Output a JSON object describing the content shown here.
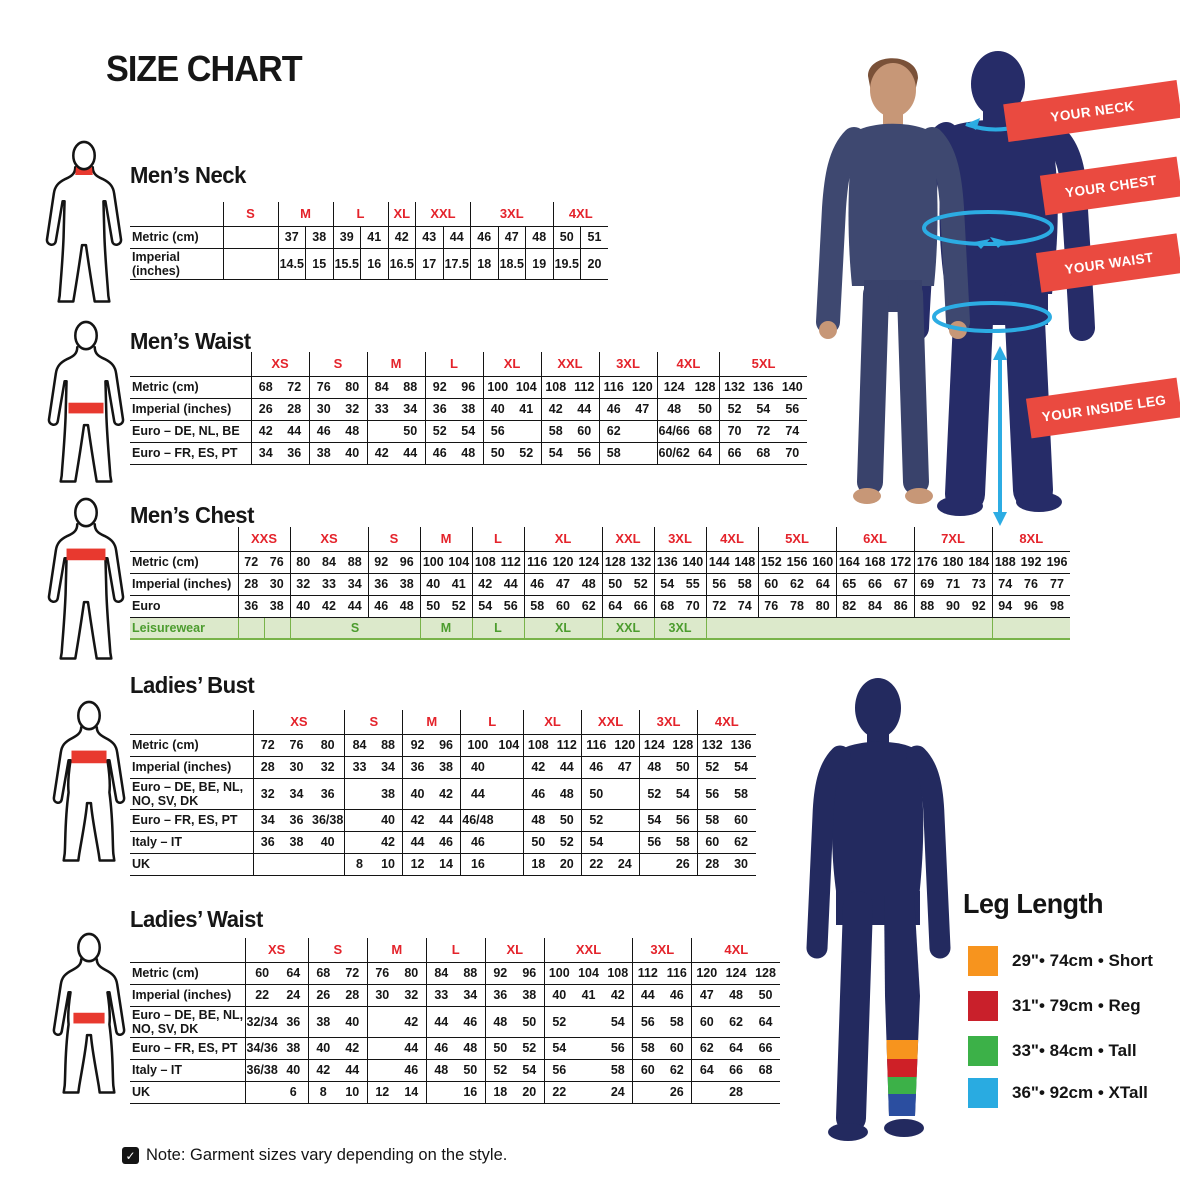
{
  "title": "SIZE CHART",
  "note": {
    "text": "Note: Garment sizes vary depending on the style."
  },
  "ribbons": {
    "neck": "YOUR NECK",
    "chest": "YOUR CHEST",
    "waist": "YOUR WAIST",
    "inside_leg": "YOUR INSIDE LEG"
  },
  "leg_length": {
    "title": "Leg Length",
    "items": [
      {
        "color": "#F7941E",
        "label": "29\"• 74cm • Short"
      },
      {
        "color": "#C9202B",
        "label": "31\"• 79cm • Reg"
      },
      {
        "color": "#3CB148",
        "label": "33\"• 84cm • Tall"
      },
      {
        "color": "#29ABE1",
        "label": "36\"• 92cm • XTall"
      }
    ]
  },
  "colors": {
    "header_red": "#E4232B",
    "ribbon_red": "#EA4A40",
    "leisure_green_text": "#4C9C2E",
    "leisure_green_bg": "#DCE9CB",
    "silhouette_navy": "#262C68",
    "arrow_blue": "#2CACE3"
  },
  "tables": {
    "mens_neck": {
      "title": "Men’s Neck",
      "groups": [
        {
          "label": "S",
          "span": 2
        },
        {
          "label": "M",
          "span": 2
        },
        {
          "label": "L",
          "span": 2
        },
        {
          "label": "XL",
          "span": 1
        },
        {
          "label": "XXL",
          "span": 2
        },
        {
          "label": "3XL",
          "span": 3
        },
        {
          "label": "4XL",
          "span": 2
        }
      ],
      "rows": [
        {
          "label": "Metric (cm)",
          "cells": [
            {
              "t": "",
              "s": 2
            },
            "37",
            "38",
            "39",
            "41",
            "42",
            "43",
            "44",
            "46",
            "47",
            "48",
            "50",
            "51"
          ]
        },
        {
          "label": "Imperial (inches)",
          "cells": [
            {
              "t": "",
              "s": 2
            },
            "14.5",
            "15",
            "15.5",
            "16",
            "16.5",
            "17",
            "17.5",
            "18",
            "18.5",
            "19",
            "19.5",
            "20"
          ]
        }
      ]
    },
    "mens_waist": {
      "title": "Men’s Waist",
      "groups": [
        {
          "label": "XS",
          "span": 2
        },
        {
          "label": "S",
          "span": 2
        },
        {
          "label": "M",
          "span": 2
        },
        {
          "label": "L",
          "span": 2
        },
        {
          "label": "XL",
          "span": 2
        },
        {
          "label": "XXL",
          "span": 2
        },
        {
          "label": "3XL",
          "span": 2
        },
        {
          "label": "4XL",
          "span": 2
        },
        {
          "label": "5XL",
          "span": 3
        }
      ],
      "rows": [
        {
          "label": "Metric (cm)",
          "cells": [
            "68",
            "72",
            "76",
            "80",
            "84",
            "88",
            "92",
            "96",
            "100",
            "104",
            "108",
            "112",
            "116",
            "120",
            "124",
            "128",
            "132",
            "136",
            "140"
          ]
        },
        {
          "label": "Imperial (inches)",
          "cells": [
            "26",
            "28",
            "30",
            "32",
            "33",
            "34",
            "36",
            "38",
            "40",
            "41",
            "42",
            "44",
            "46",
            "47",
            "48",
            "50",
            "52",
            "54",
            "56"
          ]
        },
        {
          "label": "Euro – DE, NL, BE",
          "cells": [
            "42",
            "44",
            "46",
            "48",
            "",
            "50",
            "52",
            "54",
            "56",
            "",
            "58",
            "60",
            "62",
            "",
            "64/66",
            "68",
            "70",
            "72",
            "74"
          ]
        },
        {
          "label": "Euro – FR, ES, PT",
          "cells": [
            "34",
            "36",
            "38",
            "40",
            "42",
            "44",
            "46",
            "48",
            "50",
            "52",
            "54",
            "56",
            "58",
            "",
            "60/62",
            "64",
            "66",
            "68",
            "70"
          ]
        }
      ]
    },
    "mens_chest": {
      "title": "Men’s Chest",
      "groups": [
        {
          "label": "XXS",
          "span": 2
        },
        {
          "label": "XS",
          "span": 3
        },
        {
          "label": "S",
          "span": 2
        },
        {
          "label": "M",
          "span": 2
        },
        {
          "label": "L",
          "span": 2
        },
        {
          "label": "XL",
          "span": 3
        },
        {
          "label": "XXL",
          "span": 2
        },
        {
          "label": "3XL",
          "span": 2
        },
        {
          "label": "4XL",
          "span": 2
        },
        {
          "label": "5XL",
          "span": 3
        },
        {
          "label": "6XL",
          "span": 3
        },
        {
          "label": "7XL",
          "span": 3
        },
        {
          "label": "8XL",
          "span": 3
        }
      ],
      "rows": [
        {
          "label": "Metric (cm)",
          "cells": [
            "72",
            "76",
            "80",
            "84",
            "88",
            "92",
            "96",
            "100",
            "104",
            "108",
            "112",
            "116",
            "120",
            "124",
            "128",
            "132",
            "136",
            "140",
            "144",
            "148",
            "152",
            "156",
            "160",
            "164",
            "168",
            "172",
            "176",
            "180",
            "184",
            "188",
            "192",
            "196"
          ]
        },
        {
          "label": "Imperial (inches)",
          "cells": [
            "28",
            "30",
            "32",
            "33",
            "34",
            "36",
            "38",
            "40",
            "41",
            "42",
            "44",
            "46",
            "47",
            "48",
            "50",
            "52",
            "54",
            "55",
            "56",
            "58",
            "60",
            "62",
            "64",
            "65",
            "66",
            "67",
            "69",
            "71",
            "73",
            "74",
            "76",
            "77"
          ]
        },
        {
          "label": "Euro",
          "cells": [
            "36",
            "38",
            "40",
            "42",
            "44",
            "46",
            "48",
            "50",
            "52",
            "54",
            "56",
            "58",
            "60",
            "62",
            "64",
            "66",
            "68",
            "70",
            "72",
            "74",
            "76",
            "78",
            "80",
            "82",
            "84",
            "86",
            "88",
            "90",
            "92",
            "94",
            "96",
            "98"
          ]
        },
        {
          "label": "Leisurewear",
          "cls": "leisure",
          "cells": [
            {
              "t": "",
              "s": 1
            },
            {
              "t": "",
              "s": 1
            },
            {
              "t": "S",
              "s": 5
            },
            {
              "t": "M",
              "s": 2
            },
            {
              "t": "L",
              "s": 2
            },
            {
              "t": "XL",
              "s": 3
            },
            {
              "t": "XXL",
              "s": 2
            },
            {
              "t": "3XL",
              "s": 2
            },
            {
              "t": "",
              "s": 11
            },
            {
              "t": "",
              "s": 3
            }
          ]
        }
      ]
    },
    "ladies_bust": {
      "title": "Ladies’ Bust",
      "groups": [
        {
          "label": "XS",
          "span": 3
        },
        {
          "label": "S",
          "span": 2
        },
        {
          "label": "M",
          "span": 2
        },
        {
          "label": "L",
          "span": 2
        },
        {
          "label": "XL",
          "span": 2
        },
        {
          "label": "XXL",
          "span": 2
        },
        {
          "label": "3XL",
          "span": 2
        },
        {
          "label": "4XL",
          "span": 2
        }
      ],
      "rows": [
        {
          "label": "Metric (cm)",
          "cells": [
            "72",
            "76",
            "80",
            "84",
            "88",
            "92",
            "96",
            "100",
            "104",
            "108",
            "112",
            "116",
            "120",
            "124",
            "128",
            "132",
            "136"
          ]
        },
        {
          "label": "Imperial (inches)",
          "cells": [
            "28",
            "30",
            "32",
            "33",
            "34",
            "36",
            "38",
            "40",
            "",
            "42",
            "44",
            "46",
            "47",
            "48",
            "50",
            "52",
            "54"
          ]
        },
        {
          "label": "Euro –  DE, BE, NL, NO, SV, DK",
          "cells": [
            "32",
            "34",
            "36",
            "",
            "38",
            "40",
            "42",
            "44",
            "",
            "46",
            "48",
            "50",
            "",
            "52",
            "54",
            "56",
            "58"
          ]
        },
        {
          "label": "Euro – FR, ES, PT",
          "cells": [
            "34",
            "36",
            "36/38",
            "",
            "40",
            "42",
            "44",
            "46/48",
            "",
            "48",
            "50",
            "52",
            "",
            "54",
            "56",
            "58",
            "60"
          ]
        },
        {
          "label": "Italy – IT",
          "cells": [
            "36",
            "38",
            "40",
            "",
            "42",
            "44",
            "46",
            "46",
            "",
            "50",
            "52",
            "54",
            "",
            "56",
            "58",
            "60",
            "62"
          ]
        },
        {
          "label": "UK",
          "cells": [
            "",
            "",
            "",
            "8",
            "10",
            "12",
            "14",
            "16",
            "",
            "18",
            "20",
            "22",
            "24",
            "",
            "26",
            "28",
            "30"
          ]
        }
      ]
    },
    "ladies_waist": {
      "title": "Ladies’ Waist",
      "groups": [
        {
          "label": "XS",
          "span": 2
        },
        {
          "label": "S",
          "span": 2
        },
        {
          "label": "M",
          "span": 2
        },
        {
          "label": "L",
          "span": 2
        },
        {
          "label": "XL",
          "span": 2
        },
        {
          "label": "XXL",
          "span": 3
        },
        {
          "label": "3XL",
          "span": 2
        },
        {
          "label": "4XL",
          "span": 3
        }
      ],
      "rows": [
        {
          "label": "Metric (cm)",
          "cells": [
            "60",
            "64",
            "68",
            "72",
            "76",
            "80",
            "84",
            "88",
            "92",
            "96",
            "100",
            "104",
            "108",
            "112",
            "116",
            "120",
            "124",
            "128"
          ]
        },
        {
          "label": "Imperial (inches)",
          "cells": [
            "22",
            "24",
            "26",
            "28",
            "30",
            "32",
            "33",
            "34",
            "36",
            "38",
            "40",
            "41",
            "42",
            "44",
            "46",
            "47",
            "48",
            "50"
          ]
        },
        {
          "label": "Euro – DE, BE, NL, NO, SV, DK",
          "cells": [
            "32/34",
            "36",
            "38",
            "40",
            "",
            "42",
            "44",
            "46",
            "48",
            "50",
            "52",
            "",
            "54",
            "56",
            "58",
            "60",
            "62",
            "64"
          ]
        },
        {
          "label": "Euro – FR, ES, PT",
          "cells": [
            "34/36",
            "38",
            "40",
            "42",
            "",
            "44",
            "46",
            "48",
            "50",
            "52",
            "54",
            "",
            "56",
            "58",
            "60",
            "62",
            "64",
            "66"
          ]
        },
        {
          "label": "Italy – IT",
          "cells": [
            "36/38",
            "40",
            "42",
            "44",
            "",
            "46",
            "48",
            "50",
            "52",
            "54",
            "56",
            "",
            "58",
            "60",
            "62",
            "64",
            "66",
            "68"
          ]
        },
        {
          "label": "UK",
          "cells": [
            "",
            "6",
            "8",
            "10",
            "12",
            "14",
            "",
            "16",
            "18",
            "20",
            "22",
            "",
            "24",
            "",
            "26",
            "",
            "28",
            ""
          ]
        }
      ]
    }
  }
}
